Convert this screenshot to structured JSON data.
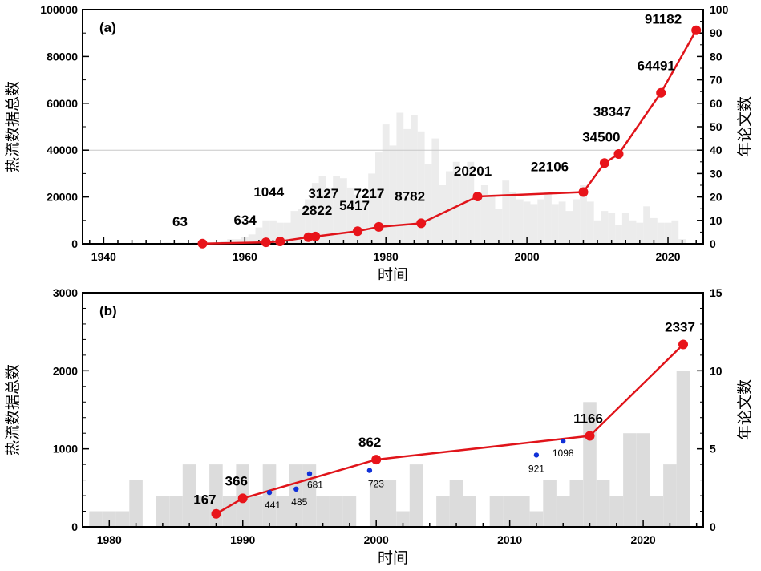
{
  "colors": {
    "line": "#e0141a",
    "marker": "#e8141a",
    "bars_a": "#ececec",
    "bars_b": "#dcdcdc",
    "blue_points": "#1030d8",
    "axis": "#000000"
  },
  "chart_data": [
    {
      "type": "line",
      "panel_label": "(a)",
      "xlabel": "时间",
      "ylabel": "热流数据总数",
      "y2label": "年论文数",
      "xlim": [
        1937,
        2025
      ],
      "ylim": [
        0,
        100000
      ],
      "y2lim": [
        0,
        100
      ],
      "x_ticks": [
        1940,
        1960,
        1980,
        2000,
        2020
      ],
      "y_ticks": [
        "0",
        "20000",
        "40000",
        "60000",
        "80000",
        "100000"
      ],
      "y2_ticks": [
        "0",
        "10",
        "20",
        "30",
        "40",
        "50",
        "60",
        "70",
        "80",
        "90",
        "100"
      ],
      "grid": "horizontal line at 40000",
      "series": [
        {
          "type": "line",
          "x": [
            1954,
            1963,
            1965,
            1969,
            1970,
            1976,
            1979,
            1985,
            1993,
            2008,
            2011,
            2013,
            2019,
            2024
          ],
          "values": [
            63,
            634,
            1044,
            2822,
            3127,
            5417,
            7217,
            8782,
            20201,
            22106,
            34500,
            38347,
            64491,
            91182
          ],
          "labels": [
            "63",
            "634",
            "1044",
            "2822",
            "3127",
            "5417",
            "7217",
            "8782",
            "20201",
            "22106",
            "34500",
            "38347",
            "64491",
            "91182"
          ]
        },
        {
          "type": "bar",
          "axis": "right",
          "x": [
            1949,
            1950,
            1951,
            1952,
            1953,
            1954,
            1955,
            1956,
            1957,
            1958,
            1959,
            1960,
            1961,
            1962,
            1963,
            1964,
            1965,
            1966,
            1967,
            1968,
            1969,
            1970,
            1971,
            1972,
            1973,
            1974,
            1975,
            1976,
            1977,
            1978,
            1979,
            1980,
            1981,
            1982,
            1983,
            1984,
            1985,
            1986,
            1987,
            1988,
            1989,
            1990,
            1991,
            1992,
            1993,
            1994,
            1995,
            1996,
            1997,
            1998,
            1999,
            2000,
            2001,
            2002,
            2003,
            2004,
            2005,
            2006,
            2007,
            2008,
            2009,
            2010,
            2011,
            2012,
            2013,
            2014,
            2015,
            2016,
            2017,
            2018,
            2019,
            2020,
            2021,
            2022
          ],
          "values": [
            0.5,
            0,
            0.5,
            0,
            0.5,
            1,
            0,
            0.5,
            1,
            2,
            2,
            3,
            4,
            7,
            10,
            10,
            9,
            9,
            14,
            15,
            19,
            26,
            29,
            24,
            29,
            28,
            24,
            21,
            18,
            30,
            39,
            51,
            42,
            56,
            49,
            55,
            48,
            34,
            45,
            25,
            31,
            35,
            29,
            35,
            22,
            25,
            21,
            15,
            27,
            22,
            19,
            18,
            17,
            19,
            22,
            17,
            18,
            14,
            19,
            25,
            18,
            10,
            14,
            13,
            8,
            13,
            10,
            9,
            16,
            11,
            9,
            9,
            10,
            2
          ]
        }
      ]
    },
    {
      "type": "line",
      "panel_label": "(b)",
      "xlabel": "时间",
      "ylabel": "热流数据总数",
      "y2label": "年论文数",
      "xlim": [
        1978,
        2024.5
      ],
      "ylim": [
        0,
        3000
      ],
      "y2lim": [
        0,
        15
      ],
      "x_ticks": [
        1980,
        1990,
        2000,
        2010,
        2020
      ],
      "y_ticks": [
        "0",
        "1000",
        "2000",
        "3000"
      ],
      "y2_ticks": [
        "0",
        "5",
        "10",
        "15"
      ],
      "series": [
        {
          "type": "line",
          "x": [
            1988,
            1990,
            2000,
            2016,
            2023
          ],
          "values": [
            167,
            366,
            862,
            1166,
            2337
          ],
          "labels": [
            "167",
            "366",
            "862",
            "1166",
            "2337"
          ]
        },
        {
          "type": "scatter",
          "x": [
            1992,
            1994,
            1995,
            1999.5,
            2012,
            2014
          ],
          "values": [
            441,
            485,
            681,
            723,
            921,
            1098
          ],
          "labels": [
            "441",
            "485",
            "681",
            "723",
            "921",
            "1098"
          ]
        },
        {
          "type": "bar",
          "axis": "right",
          "x": [
            1979,
            1980,
            1981,
            1982,
            1983,
            1984,
            1985,
            1986,
            1987,
            1988,
            1989,
            1990,
            1991,
            1992,
            1993,
            1994,
            1995,
            1996,
            1997,
            1998,
            1999,
            2000,
            2001,
            2002,
            2003,
            2004,
            2005,
            2006,
            2007,
            2008,
            2009,
            2010,
            2011,
            2012,
            2013,
            2014,
            2015,
            2016,
            2017,
            2018,
            2019,
            2020,
            2021,
            2022,
            2023
          ],
          "values": [
            1,
            1,
            1,
            3,
            0,
            2,
            2,
            4,
            2,
            4,
            2,
            4,
            2,
            4,
            2,
            4,
            4,
            2,
            2,
            2,
            0,
            3,
            3,
            1,
            4,
            0,
            2,
            3,
            2,
            0,
            2,
            2,
            2,
            1,
            3,
            2,
            3,
            8,
            3,
            2,
            6,
            6,
            2,
            4,
            10
          ]
        }
      ]
    }
  ]
}
